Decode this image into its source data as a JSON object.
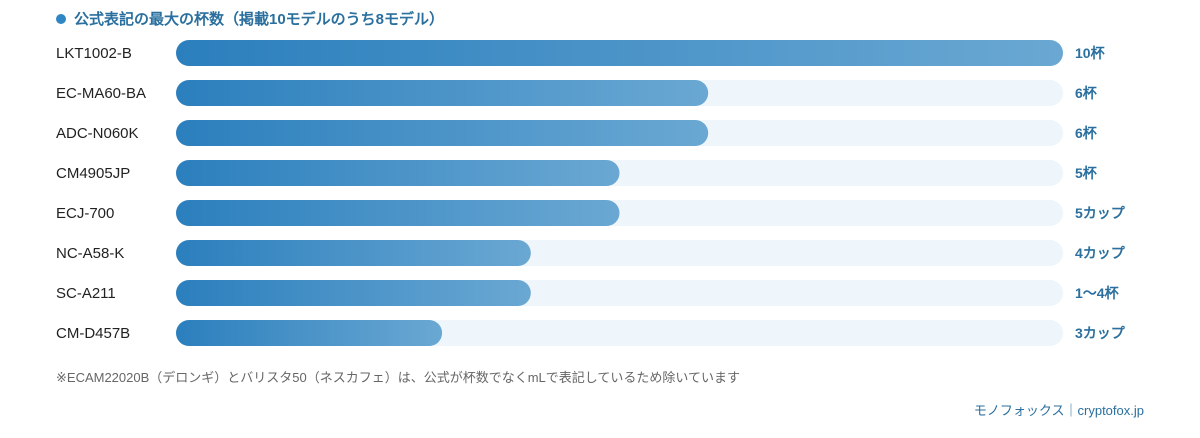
{
  "colors": {
    "accent": "#2f86c4",
    "bar_start": "#2b7fbd",
    "bar_end": "#6aa8d3",
    "track": "#eef5fb",
    "value_text": "#2a6f9e",
    "label_text": "#222222"
  },
  "chart_data": {
    "type": "bar",
    "orientation": "horizontal",
    "title": "公式表記の最大の杯数（掲載10モデルのうち8モデル）",
    "categories": [
      "LKT1002-B",
      "EC-MA60-BA",
      "ADC-N060K",
      "CM4905JP",
      "ECJ-700",
      "NC-A58-K",
      "SC-A211",
      "CM-D457B"
    ],
    "values": [
      10,
      6,
      6,
      5,
      5,
      4,
      4,
      3
    ],
    "value_labels": [
      "10杯",
      "6杯",
      "6杯",
      "5杯",
      "5カップ",
      "4カップ",
      "1〜4杯",
      "3カップ"
    ],
    "xlim": [
      0,
      10
    ],
    "grid": false,
    "legend": "none"
  },
  "footnote": "※ECAM22020B（デロンギ）とバリスタ50（ネスカフェ）は、公式が杯数でなくmLで表記しているため除いています",
  "credit": "モノフォックス｜cryptofox.jp"
}
